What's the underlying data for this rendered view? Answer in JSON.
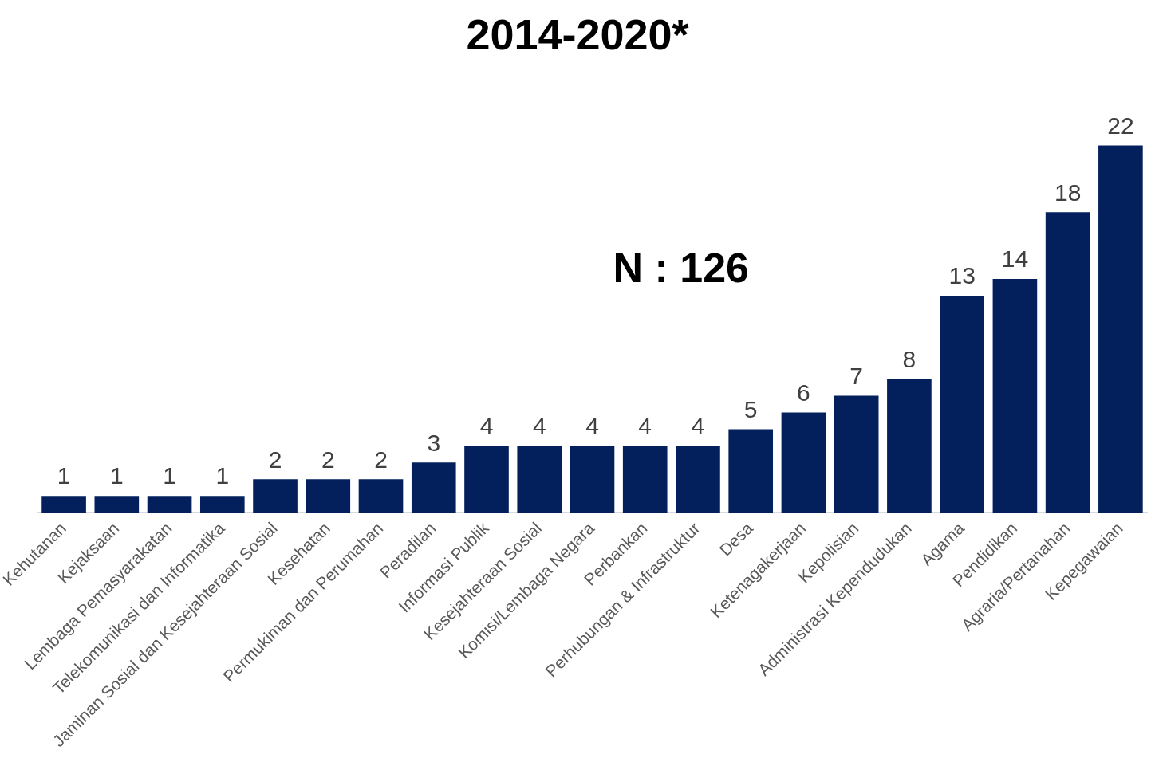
{
  "chart_data": {
    "type": "bar",
    "title": "2014-2020*",
    "categories": [
      "Kehutanan",
      "Kejaksaan",
      "Lembaga Pemasyarakatan",
      "Telekomunikasi dan Informatika",
      "Jaminan Sosial dan Kesejahteraan Sosial",
      "Kesehatan",
      "Permukiman dan Perumahan",
      "Peradilan",
      "Informasi Publik",
      "Kesejahteraan Sosial",
      "Komisi/Lembaga Negara",
      "Perbankan",
      "Perhubungan & Infrastruktur",
      "Desa",
      "Ketenagakerjaan",
      "Kepolisian",
      "Administrasi Kependudukan",
      "Agama",
      "Pendidikan",
      "Agraria/Pertanahan",
      "Kepegawaian"
    ],
    "values": [
      1,
      1,
      1,
      1,
      2,
      2,
      2,
      3,
      4,
      4,
      4,
      4,
      4,
      5,
      6,
      7,
      8,
      13,
      14,
      18,
      22
    ],
    "color": "#03205c",
    "data_labels": true,
    "grid": false,
    "legend": false,
    "annotations": [
      "N : 126"
    ]
  }
}
